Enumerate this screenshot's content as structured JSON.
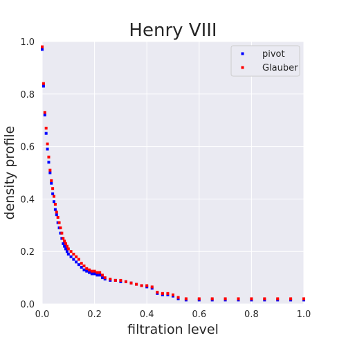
{
  "chart_data": {
    "type": "scatter",
    "title": "Henry VIII",
    "xlabel": "filtration level",
    "ylabel": "density profile",
    "xlim": [
      0.0,
      1.0
    ],
    "ylim": [
      0.0,
      1.0
    ],
    "xticks": [
      0.0,
      0.2,
      0.4,
      0.6,
      0.8,
      1.0
    ],
    "yticks": [
      0.0,
      0.2,
      0.4,
      0.6,
      0.8,
      1.0
    ],
    "xtick_labels": [
      "0.0",
      "0.2",
      "0.4",
      "0.6",
      "0.8",
      "1.0"
    ],
    "ytick_labels": [
      "0.0",
      "0.2",
      "0.4",
      "0.6",
      "0.8",
      "1.0"
    ],
    "grid": true,
    "background": "#eaeaf2",
    "legend_position": "top-right",
    "series": [
      {
        "name": "pivot",
        "color": "#0000ff",
        "marker": "square",
        "x": [
          0.0,
          0.005,
          0.01,
          0.015,
          0.02,
          0.025,
          0.03,
          0.035,
          0.04,
          0.045,
          0.05,
          0.055,
          0.06,
          0.065,
          0.07,
          0.075,
          0.08,
          0.085,
          0.09,
          0.095,
          0.1,
          0.11,
          0.12,
          0.13,
          0.14,
          0.15,
          0.16,
          0.17,
          0.18,
          0.19,
          0.2,
          0.21,
          0.22,
          0.23,
          0.24,
          0.26,
          0.28,
          0.3,
          0.32,
          0.34,
          0.36,
          0.38,
          0.4,
          0.42,
          0.44,
          0.46,
          0.48,
          0.5,
          0.52,
          0.55,
          0.6,
          0.65,
          0.7,
          0.75,
          0.8,
          0.85,
          0.9,
          0.95,
          1.0
        ],
        "y": [
          0.97,
          0.83,
          0.72,
          0.65,
          0.59,
          0.54,
          0.5,
          0.46,
          0.42,
          0.39,
          0.36,
          0.34,
          0.31,
          0.29,
          0.27,
          0.25,
          0.23,
          0.22,
          0.21,
          0.2,
          0.19,
          0.18,
          0.17,
          0.16,
          0.15,
          0.14,
          0.13,
          0.125,
          0.12,
          0.115,
          0.115,
          0.11,
          0.11,
          0.1,
          0.095,
          0.09,
          0.09,
          0.085,
          0.085,
          0.08,
          0.075,
          0.07,
          0.065,
          0.06,
          0.04,
          0.035,
          0.035,
          0.03,
          0.02,
          0.015,
          0.015,
          0.015,
          0.015,
          0.015,
          0.015,
          0.015,
          0.015,
          0.015,
          0.015
        ]
      },
      {
        "name": "Glauber",
        "color": "#ff0000",
        "marker": "square",
        "x": [
          0.0,
          0.005,
          0.01,
          0.015,
          0.02,
          0.025,
          0.03,
          0.035,
          0.04,
          0.045,
          0.05,
          0.055,
          0.06,
          0.065,
          0.07,
          0.075,
          0.08,
          0.085,
          0.09,
          0.095,
          0.1,
          0.11,
          0.12,
          0.13,
          0.14,
          0.15,
          0.16,
          0.17,
          0.18,
          0.19,
          0.2,
          0.21,
          0.22,
          0.23,
          0.24,
          0.26,
          0.28,
          0.3,
          0.32,
          0.34,
          0.36,
          0.38,
          0.4,
          0.42,
          0.44,
          0.46,
          0.48,
          0.5,
          0.52,
          0.55,
          0.6,
          0.65,
          0.7,
          0.75,
          0.8,
          0.85,
          0.9,
          0.95,
          1.0
        ],
        "y": [
          0.98,
          0.84,
          0.73,
          0.67,
          0.61,
          0.56,
          0.51,
          0.47,
          0.44,
          0.41,
          0.38,
          0.35,
          0.33,
          0.31,
          0.29,
          0.27,
          0.25,
          0.24,
          0.23,
          0.22,
          0.21,
          0.2,
          0.19,
          0.18,
          0.17,
          0.155,
          0.145,
          0.135,
          0.13,
          0.125,
          0.125,
          0.12,
          0.12,
          0.11,
          0.1,
          0.095,
          0.09,
          0.09,
          0.085,
          0.08,
          0.075,
          0.07,
          0.07,
          0.065,
          0.045,
          0.04,
          0.04,
          0.035,
          0.025,
          0.02,
          0.02,
          0.02,
          0.02,
          0.02,
          0.02,
          0.02,
          0.02,
          0.02,
          0.02
        ]
      }
    ]
  }
}
